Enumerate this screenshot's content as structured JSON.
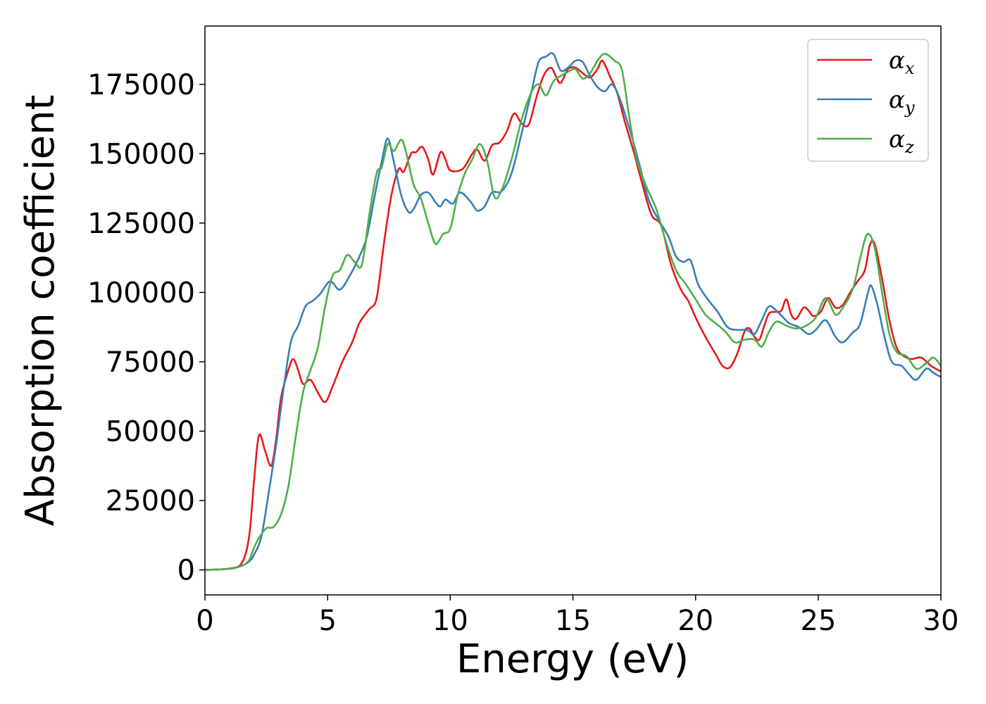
{
  "chart_data": {
    "type": "line",
    "title": "",
    "xlabel": "Energy (eV)",
    "ylabel": "Absorption coefficient",
    "xlim": [
      0,
      30
    ],
    "ylim": [
      -9000,
      196000
    ],
    "xticks": [
      0,
      5,
      10,
      15,
      20,
      25,
      30
    ],
    "xtick_labels": [
      "0",
      "5",
      "10",
      "15",
      "20",
      "25",
      "30"
    ],
    "yticks": [
      0,
      25000,
      50000,
      75000,
      100000,
      125000,
      150000,
      175000
    ],
    "ytick_labels": [
      "0",
      "25000",
      "50000",
      "75000",
      "100000",
      "125000",
      "150000",
      "175000"
    ],
    "grid": false,
    "legend_position": "top-right",
    "series": [
      {
        "name": "α",
        "sub": "x",
        "color": "#e41a1c",
        "points": [
          [
            0,
            0
          ],
          [
            1,
            500
          ],
          [
            1.5,
            2500
          ],
          [
            1.8,
            12000
          ],
          [
            2.0,
            32000
          ],
          [
            2.2,
            48500
          ],
          [
            2.45,
            43000
          ],
          [
            2.7,
            37500
          ],
          [
            2.9,
            47000
          ],
          [
            3.1,
            62000
          ],
          [
            3.4,
            72000
          ],
          [
            3.6,
            76000
          ],
          [
            3.8,
            72000
          ],
          [
            4.0,
            67000
          ],
          [
            4.3,
            68500
          ],
          [
            4.6,
            64000
          ],
          [
            4.9,
            60500
          ],
          [
            5.2,
            66000
          ],
          [
            5.6,
            75000
          ],
          [
            6.0,
            82000
          ],
          [
            6.3,
            89000
          ],
          [
            6.7,
            94000
          ],
          [
            7.0,
            98000
          ],
          [
            7.3,
            118000
          ],
          [
            7.6,
            135000
          ],
          [
            7.9,
            144500
          ],
          [
            8.1,
            143500
          ],
          [
            8.4,
            150000
          ],
          [
            8.6,
            150500
          ],
          [
            8.85,
            152500
          ],
          [
            9.1,
            148000
          ],
          [
            9.3,
            142500
          ],
          [
            9.6,
            150500
          ],
          [
            9.8,
            148000
          ],
          [
            10.0,
            144000
          ],
          [
            10.5,
            144500
          ],
          [
            10.9,
            150000
          ],
          [
            11.1,
            151500
          ],
          [
            11.4,
            147500
          ],
          [
            11.7,
            153000
          ],
          [
            12.0,
            154000
          ],
          [
            12.3,
            158000
          ],
          [
            12.6,
            164500
          ],
          [
            12.9,
            161000
          ],
          [
            13.2,
            160500
          ],
          [
            13.5,
            170000
          ],
          [
            13.8,
            178000
          ],
          [
            14.1,
            181000
          ],
          [
            14.3,
            178000
          ],
          [
            14.5,
            175500
          ],
          [
            14.8,
            180500
          ],
          [
            15.1,
            181000
          ],
          [
            15.4,
            179000
          ],
          [
            15.7,
            177500
          ],
          [
            16.0,
            180500
          ],
          [
            16.2,
            183500
          ],
          [
            16.5,
            178000
          ],
          [
            16.8,
            172000
          ],
          [
            17.1,
            162000
          ],
          [
            17.5,
            150000
          ],
          [
            17.8,
            140000
          ],
          [
            18.2,
            128000
          ],
          [
            18.6,
            124000
          ],
          [
            19.0,
            110000
          ],
          [
            19.4,
            101000
          ],
          [
            19.7,
            97000
          ],
          [
            20.0,
            91000
          ],
          [
            20.4,
            84000
          ],
          [
            20.8,
            78000
          ],
          [
            21.1,
            73500
          ],
          [
            21.4,
            73000
          ],
          [
            21.7,
            78000
          ],
          [
            22.0,
            86000
          ],
          [
            22.2,
            87000
          ],
          [
            22.4,
            84000
          ],
          [
            22.6,
            83000
          ],
          [
            22.8,
            88000
          ],
          [
            23.0,
            92500
          ],
          [
            23.3,
            93000
          ],
          [
            23.5,
            93500
          ],
          [
            23.7,
            97500
          ],
          [
            23.9,
            92000
          ],
          [
            24.1,
            90500
          ],
          [
            24.4,
            94500
          ],
          [
            24.6,
            93500
          ],
          [
            24.8,
            91500
          ],
          [
            25.1,
            93000
          ],
          [
            25.4,
            98000
          ],
          [
            25.7,
            94500
          ],
          [
            26.0,
            95500
          ],
          [
            26.3,
            100000
          ],
          [
            26.6,
            104000
          ],
          [
            26.9,
            108000
          ],
          [
            27.1,
            117000
          ],
          [
            27.3,
            117500
          ],
          [
            27.6,
            105000
          ],
          [
            27.9,
            90000
          ],
          [
            28.2,
            80000
          ],
          [
            28.5,
            77000
          ],
          [
            28.8,
            76000
          ],
          [
            29.2,
            76500
          ],
          [
            29.6,
            73500
          ],
          [
            30.0,
            71500
          ]
        ]
      },
      {
        "name": "α",
        "sub": "y",
        "color": "#377eb8",
        "points": [
          [
            0,
            0
          ],
          [
            1,
            400
          ],
          [
            1.5,
            1500
          ],
          [
            1.8,
            3000
          ],
          [
            2.0,
            5500
          ],
          [
            2.3,
            12000
          ],
          [
            2.6,
            28000
          ],
          [
            2.9,
            45000
          ],
          [
            3.2,
            65000
          ],
          [
            3.5,
            82000
          ],
          [
            3.8,
            88000
          ],
          [
            4.1,
            95000
          ],
          [
            4.4,
            97000
          ],
          [
            4.7,
            99500
          ],
          [
            5.1,
            104000
          ],
          [
            5.5,
            101000
          ],
          [
            5.9,
            106000
          ],
          [
            6.3,
            113000
          ],
          [
            6.6,
            120000
          ],
          [
            6.9,
            134000
          ],
          [
            7.2,
            147000
          ],
          [
            7.45,
            155500
          ],
          [
            7.7,
            147000
          ],
          [
            8.0,
            135000
          ],
          [
            8.3,
            129000
          ],
          [
            8.5,
            130000
          ],
          [
            8.8,
            135000
          ],
          [
            9.1,
            136000
          ],
          [
            9.4,
            132500
          ],
          [
            9.6,
            131000
          ],
          [
            9.8,
            133500
          ],
          [
            10.1,
            132000
          ],
          [
            10.4,
            136000
          ],
          [
            10.8,
            133000
          ],
          [
            11.1,
            129500
          ],
          [
            11.4,
            131000
          ],
          [
            11.7,
            136000
          ],
          [
            12.1,
            136500
          ],
          [
            12.5,
            143000
          ],
          [
            12.9,
            157000
          ],
          [
            13.3,
            172000
          ],
          [
            13.6,
            183000
          ],
          [
            13.9,
            185000
          ],
          [
            14.2,
            186000
          ],
          [
            14.5,
            180000
          ],
          [
            14.8,
            181000
          ],
          [
            15.1,
            183500
          ],
          [
            15.4,
            183000
          ],
          [
            15.7,
            178000
          ],
          [
            16.0,
            174000
          ],
          [
            16.3,
            172500
          ],
          [
            16.6,
            175000
          ],
          [
            16.9,
            170000
          ],
          [
            17.2,
            162000
          ],
          [
            17.5,
            153000
          ],
          [
            17.8,
            143000
          ],
          [
            18.1,
            133000
          ],
          [
            18.5,
            126000
          ],
          [
            18.9,
            120000
          ],
          [
            19.2,
            113000
          ],
          [
            19.5,
            111000
          ],
          [
            19.8,
            111500
          ],
          [
            20.1,
            103000
          ],
          [
            20.5,
            97500
          ],
          [
            20.9,
            93000
          ],
          [
            21.3,
            87500
          ],
          [
            21.7,
            86500
          ],
          [
            22.1,
            86500
          ],
          [
            22.4,
            85000
          ],
          [
            22.7,
            90000
          ],
          [
            23.0,
            95000
          ],
          [
            23.4,
            92500
          ],
          [
            23.8,
            89000
          ],
          [
            24.2,
            87500
          ],
          [
            24.6,
            85000
          ],
          [
            24.9,
            86500
          ],
          [
            25.3,
            90000
          ],
          [
            25.7,
            84000
          ],
          [
            26.0,
            82000
          ],
          [
            26.4,
            85500
          ],
          [
            26.7,
            88500
          ],
          [
            27.0,
            99000
          ],
          [
            27.15,
            102500
          ],
          [
            27.4,
            96000
          ],
          [
            27.7,
            84000
          ],
          [
            28.0,
            75000
          ],
          [
            28.4,
            73500
          ],
          [
            28.7,
            70500
          ],
          [
            29.0,
            68500
          ],
          [
            29.4,
            72500
          ],
          [
            29.7,
            71000
          ],
          [
            30.0,
            69500
          ]
        ]
      },
      {
        "name": "α",
        "sub": "z",
        "color": "#4daf4a",
        "points": [
          [
            0,
            0
          ],
          [
            1,
            400
          ],
          [
            1.5,
            1500
          ],
          [
            1.8,
            3500
          ],
          [
            2.0,
            8000
          ],
          [
            2.2,
            11500
          ],
          [
            2.5,
            15000
          ],
          [
            2.8,
            15500
          ],
          [
            3.1,
            20000
          ],
          [
            3.4,
            30000
          ],
          [
            3.7,
            48000
          ],
          [
            4.0,
            64000
          ],
          [
            4.3,
            72000
          ],
          [
            4.6,
            80000
          ],
          [
            4.9,
            95000
          ],
          [
            5.2,
            106000
          ],
          [
            5.5,
            108000
          ],
          [
            5.8,
            113500
          ],
          [
            6.1,
            111000
          ],
          [
            6.4,
            110000
          ],
          [
            6.7,
            128000
          ],
          [
            7.0,
            143000
          ],
          [
            7.2,
            145000
          ],
          [
            7.45,
            153500
          ],
          [
            7.7,
            151000
          ],
          [
            8.0,
            155000
          ],
          [
            8.2,
            150500
          ],
          [
            8.5,
            139000
          ],
          [
            8.8,
            134000
          ],
          [
            9.1,
            125000
          ],
          [
            9.4,
            117500
          ],
          [
            9.7,
            121000
          ],
          [
            10.0,
            123000
          ],
          [
            10.3,
            135000
          ],
          [
            10.6,
            143000
          ],
          [
            10.9,
            148000
          ],
          [
            11.2,
            153500
          ],
          [
            11.5,
            147500
          ],
          [
            11.8,
            134500
          ],
          [
            12.1,
            137000
          ],
          [
            12.5,
            148000
          ],
          [
            12.9,
            162000
          ],
          [
            13.3,
            172000
          ],
          [
            13.6,
            175000
          ],
          [
            13.9,
            171000
          ],
          [
            14.2,
            176000
          ],
          [
            14.5,
            178000
          ],
          [
            14.8,
            179500
          ],
          [
            15.1,
            180500
          ],
          [
            15.4,
            177000
          ],
          [
            15.7,
            179000
          ],
          [
            16.0,
            183500
          ],
          [
            16.3,
            186000
          ],
          [
            16.7,
            183500
          ],
          [
            17.0,
            180000
          ],
          [
            17.3,
            163000
          ],
          [
            17.6,
            148000
          ],
          [
            18.0,
            138000
          ],
          [
            18.4,
            130000
          ],
          [
            18.8,
            118000
          ],
          [
            19.2,
            108000
          ],
          [
            19.6,
            103000
          ],
          [
            20.0,
            97500
          ],
          [
            20.4,
            92000
          ],
          [
            20.8,
            89000
          ],
          [
            21.2,
            86000
          ],
          [
            21.6,
            82000
          ],
          [
            22.0,
            83000
          ],
          [
            22.4,
            83000
          ],
          [
            22.7,
            80500
          ],
          [
            23.0,
            86000
          ],
          [
            23.3,
            89500
          ],
          [
            23.7,
            88000
          ],
          [
            24.1,
            87000
          ],
          [
            24.5,
            88000
          ],
          [
            24.9,
            91000
          ],
          [
            25.3,
            98000
          ],
          [
            25.7,
            92000
          ],
          [
            26.0,
            94500
          ],
          [
            26.4,
            101000
          ],
          [
            26.7,
            112000
          ],
          [
            27.0,
            121000
          ],
          [
            27.3,
            116000
          ],
          [
            27.6,
            100000
          ],
          [
            27.9,
            85000
          ],
          [
            28.2,
            78500
          ],
          [
            28.6,
            77000
          ],
          [
            29.0,
            72500
          ],
          [
            29.4,
            74500
          ],
          [
            29.7,
            76500
          ],
          [
            30.0,
            73500
          ]
        ]
      }
    ]
  }
}
